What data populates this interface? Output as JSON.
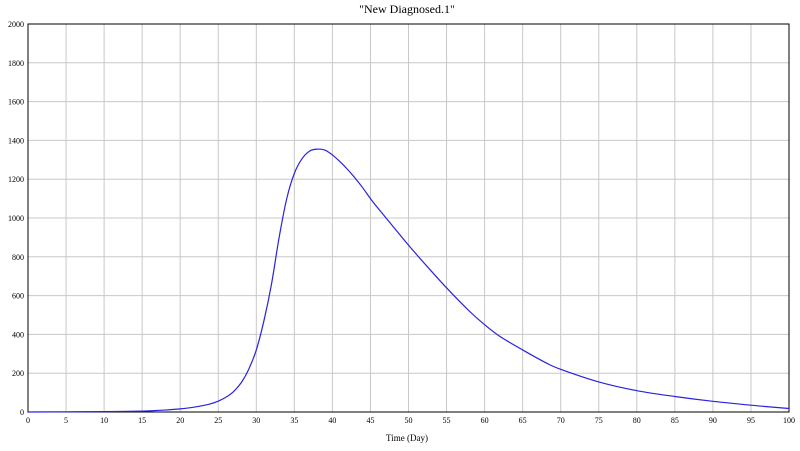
{
  "chart_data": {
    "type": "line",
    "title": "\"New Diagnosed.1\"",
    "xlabel": "Time (Day)",
    "ylabel": "",
    "xlim": [
      0,
      100
    ],
    "ylim": [
      0,
      2000
    ],
    "x_ticks": [
      0,
      5,
      10,
      15,
      20,
      25,
      30,
      35,
      40,
      45,
      50,
      55,
      60,
      65,
      70,
      75,
      80,
      85,
      90,
      95,
      100
    ],
    "y_ticks": [
      0,
      200,
      400,
      600,
      800,
      1000,
      1200,
      1400,
      1600,
      1800,
      2000
    ],
    "grid": true,
    "legend": "none",
    "series": [
      {
        "color": "#2a22e0",
        "x": [
          0,
          5,
          10,
          14,
          16,
          18,
          20,
          22,
          24,
          25,
          26,
          27,
          28,
          29,
          30,
          31,
          32,
          33,
          34,
          35,
          36,
          37,
          38,
          39,
          40,
          41,
          42,
          43,
          44,
          45,
          46,
          48,
          50,
          52,
          55,
          58,
          60,
          62,
          65,
          68,
          70,
          75,
          80,
          85,
          90,
          95,
          100
        ],
        "y": [
          0,
          1,
          2,
          4,
          6,
          10,
          16,
          26,
          42,
          56,
          76,
          105,
          150,
          220,
          320,
          470,
          660,
          900,
          1100,
          1230,
          1305,
          1345,
          1355,
          1350,
          1325,
          1290,
          1250,
          1205,
          1155,
          1100,
          1050,
          955,
          860,
          770,
          640,
          520,
          450,
          390,
          320,
          255,
          220,
          155,
          110,
          80,
          55,
          35,
          18
        ]
      }
    ]
  }
}
